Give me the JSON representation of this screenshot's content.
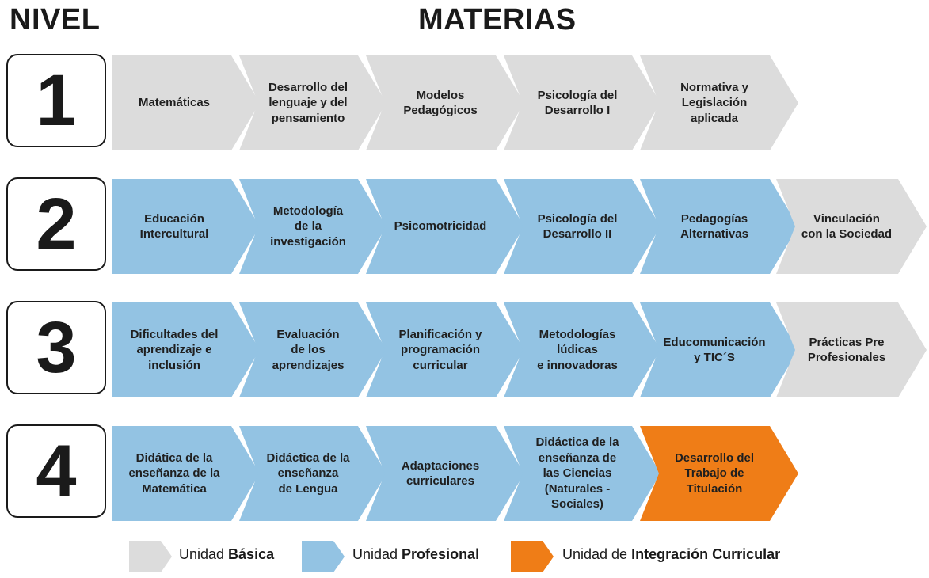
{
  "header": {
    "nivel": "NIVEL",
    "materias": "MATERIAS"
  },
  "levels": [
    {
      "number": "1",
      "subjects": [
        [
          "Matemáticas"
        ],
        [
          "Desarrollo del",
          "lenguaje y del",
          "pensamiento"
        ],
        [
          "Modelos",
          "Pedagógicos"
        ],
        [
          "Psicología del",
          "Desarrollo I"
        ],
        [
          "Normativa y",
          "Legislación",
          "aplicada"
        ]
      ]
    },
    {
      "number": "2",
      "subjects": [
        [
          "Educación",
          "Intercultural"
        ],
        [
          "Metodología",
          "de la",
          "investigación"
        ],
        [
          "Psicomotricidad"
        ],
        [
          "Psicología del",
          "Desarrollo II"
        ],
        [
          "Pedagogías",
          "Alternativas"
        ],
        [
          "Vinculación",
          "con la Sociedad"
        ]
      ]
    },
    {
      "number": "3",
      "subjects": [
        [
          "Dificultades del",
          "aprendizaje e",
          "inclusión"
        ],
        [
          "Evaluación",
          "de los",
          "aprendizajes"
        ],
        [
          "Planificación y",
          "programación",
          "curricular"
        ],
        [
          "Metodologías",
          "lúdicas",
          "e innovadoras"
        ],
        [
          "Educomunicación",
          "y TIC´S"
        ],
        [
          "Prácticas Pre",
          "Profesionales"
        ]
      ]
    },
    {
      "number": "4",
      "subjects": [
        [
          "Didática de la",
          "enseñanza de la",
          "Matemática"
        ],
        [
          "Didáctica de la",
          "enseñanza",
          "de Lengua"
        ],
        [
          "Adaptaciones",
          "curriculares"
        ],
        [
          "Didáctica de la",
          "enseñanza de",
          "las Ciencias",
          "(Naturales -",
          "Sociales)"
        ],
        [
          "Desarrollo del",
          "Trabajo de",
          "Titulación"
        ]
      ]
    }
  ],
  "legend": [
    {
      "prefix": "Unidad ",
      "bold": "Básica",
      "color": "#dcdcdc"
    },
    {
      "prefix": "Unidad ",
      "bold": "Profesional",
      "color": "#93c3e3"
    },
    {
      "prefix": "Unidad de ",
      "bold": "Integración Curricular",
      "color": "#ef7d17"
    }
  ],
  "colors": {
    "basica": "#dcdcdc",
    "profesional": "#93c3e3",
    "integracion": "#ef7d17"
  }
}
